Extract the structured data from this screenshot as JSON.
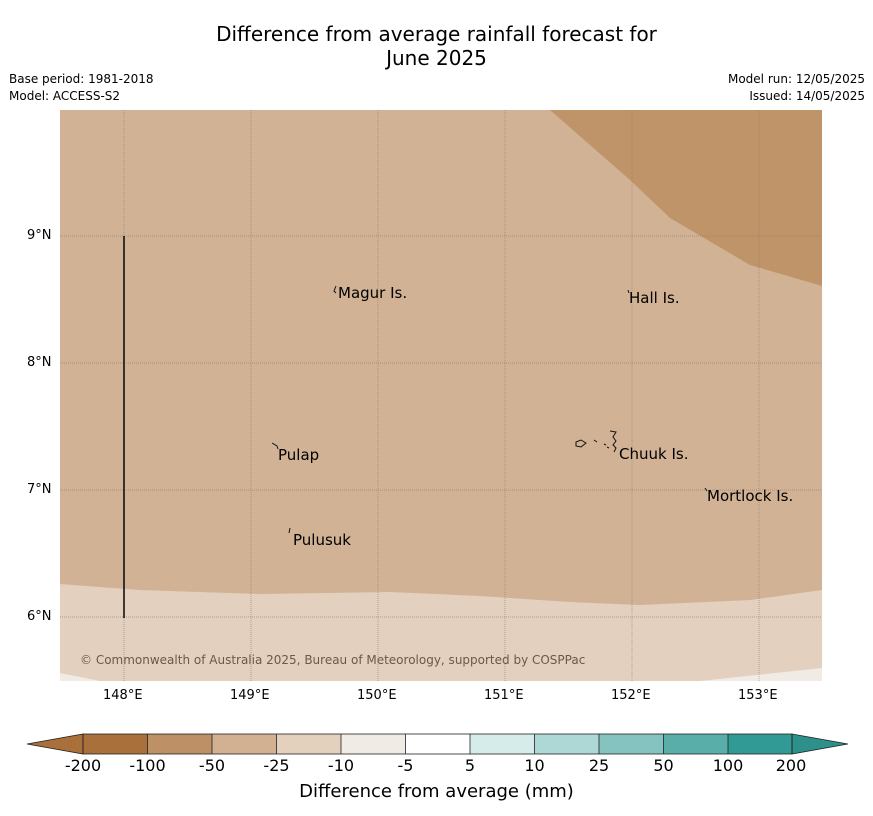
{
  "header": {
    "title_line1": "Difference from average rainfall forecast for",
    "title_line2": "June 2025",
    "base_period": "Base period: 1981-2018",
    "model": "Model: ACCESS-S2",
    "model_run": "Model run: 12/05/2025",
    "issued": "Issued: 14/05/2025"
  },
  "map": {
    "lat_labels": [
      "9°N",
      "8°N",
      "7°N",
      "6°N"
    ],
    "lon_labels": [
      "148°E",
      "149°E",
      "150°E",
      "151°E",
      "152°E",
      "153°E"
    ],
    "places": [
      "Magur Is.",
      "Hall Is.",
      "Pulap",
      "Chuuk Is.",
      "Mortlock Is.",
      "Pulusuk"
    ],
    "copyright": "© Commonwealth of Australia 2025, Bureau of Meteorology, supported by COSPPac",
    "region_colors": {
      "dark_brown": "#c09469",
      "medium_brown": "#d1b294",
      "light_brown": "#e3d0be",
      "pale": "#f0ebe5"
    },
    "gridline_color": "#8b7a6a"
  },
  "colorbar": {
    "title": "Difference from average (mm)",
    "ticks": [
      "-200",
      "-100",
      "-50",
      "-25",
      "-10",
      "-5",
      "5",
      "10",
      "25",
      "50",
      "100",
      "200"
    ],
    "colors": [
      "#a9703b",
      "#be9066",
      "#d1b192",
      "#e3d0bd",
      "#f1ebe5",
      "#ffffff",
      "#d6eceb",
      "#aed8d6",
      "#84c3c0",
      "#5aaeaa",
      "#319a95"
    ],
    "low_extend_color": "#a9703b",
    "high_extend_color": "#2d908b"
  }
}
